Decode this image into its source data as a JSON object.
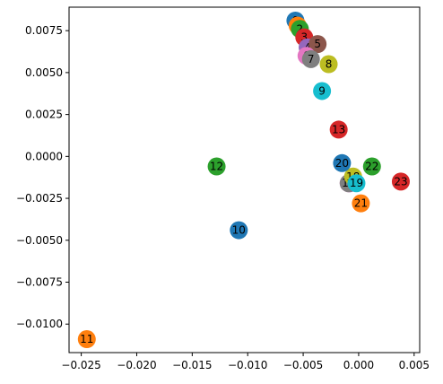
{
  "chart_data": {
    "type": "scatter",
    "title": "",
    "xlabel": "",
    "ylabel": "",
    "xlim": [
      -0.0261,
      0.0055
    ],
    "ylim": [
      -0.0117,
      0.0089
    ],
    "grid": false,
    "legend": null,
    "x_ticks": [
      {
        "value": -0.025,
        "label": "−0.025"
      },
      {
        "value": -0.02,
        "label": "−0.020"
      },
      {
        "value": -0.015,
        "label": "−0.015"
      },
      {
        "value": -0.01,
        "label": "−0.010"
      },
      {
        "value": -0.005,
        "label": "−0.005"
      },
      {
        "value": 0.0,
        "label": "0.000"
      },
      {
        "value": 0.005,
        "label": "0.005"
      }
    ],
    "y_ticks": [
      {
        "value": 0.0075,
        "label": "0.0075"
      },
      {
        "value": 0.005,
        "label": "0.0050"
      },
      {
        "value": 0.0025,
        "label": "0.0025"
      },
      {
        "value": 0.0,
        "label": "0.0000"
      },
      {
        "value": -0.0025,
        "label": "−0.0025"
      },
      {
        "value": -0.005,
        "label": "−0.0050"
      },
      {
        "value": -0.0075,
        "label": "−0.0075"
      },
      {
        "value": -0.01,
        "label": "−0.0100"
      }
    ],
    "points": [
      {
        "label": "0",
        "x": -0.0057,
        "y": 0.0081,
        "color": "#1f77b4"
      },
      {
        "label": "1",
        "x": -0.0055,
        "y": 0.0078,
        "color": "#ff7f0e"
      },
      {
        "label": "2",
        "x": -0.0053,
        "y": 0.0076,
        "color": "#2ca02c"
      },
      {
        "label": "3",
        "x": -0.0049,
        "y": 0.0071,
        "color": "#d62728"
      },
      {
        "label": "4",
        "x": -0.0046,
        "y": 0.0065,
        "color": "#9467bd"
      },
      {
        "label": "5",
        "x": -0.0037,
        "y": 0.0067,
        "color": "#8c564b"
      },
      {
        "label": "6",
        "x": -0.0047,
        "y": 0.006,
        "color": "#e377c2"
      },
      {
        "label": "7",
        "x": -0.0043,
        "y": 0.0058,
        "color": "#7f7f7f"
      },
      {
        "label": "8",
        "x": -0.0027,
        "y": 0.0055,
        "color": "#bcbd22"
      },
      {
        "label": "9",
        "x": -0.0033,
        "y": 0.0039,
        "color": "#17becf"
      },
      {
        "label": "10",
        "x": -0.0108,
        "y": -0.0044,
        "color": "#1f77b4"
      },
      {
        "label": "11",
        "x": -0.0245,
        "y": -0.0109,
        "color": "#ff7f0e"
      },
      {
        "label": "12",
        "x": -0.0128,
        "y": -0.0006,
        "color": "#2ca02c"
      },
      {
        "label": "13",
        "x": -0.0018,
        "y": 0.0016,
        "color": "#d62728"
      },
      {
        "label": "14",
        "x": -0.0008,
        "y": -0.0016,
        "color": "#9467bd"
      },
      {
        "label": "15",
        "x": -0.0007,
        "y": -0.0015,
        "color": "#8c564b"
      },
      {
        "label": "16",
        "x": -0.0009,
        "y": -0.0016,
        "color": "#e377c2"
      },
      {
        "label": "17",
        "x": -0.0009,
        "y": -0.0016,
        "color": "#7f7f7f"
      },
      {
        "label": "18",
        "x": -0.0005,
        "y": -0.0012,
        "color": "#bcbd22"
      },
      {
        "label": "19",
        "x": -0.0002,
        "y": -0.0016,
        "color": "#17becf"
      },
      {
        "label": "20",
        "x": -0.0015,
        "y": -0.0004,
        "color": "#1f77b4"
      },
      {
        "label": "21",
        "x": 0.0002,
        "y": -0.0028,
        "color": "#ff7f0e"
      },
      {
        "label": "22",
        "x": 0.0012,
        "y": -0.0006,
        "color": "#2ca02c"
      },
      {
        "label": "23",
        "x": 0.0038,
        "y": -0.0015,
        "color": "#d62728"
      }
    ]
  }
}
